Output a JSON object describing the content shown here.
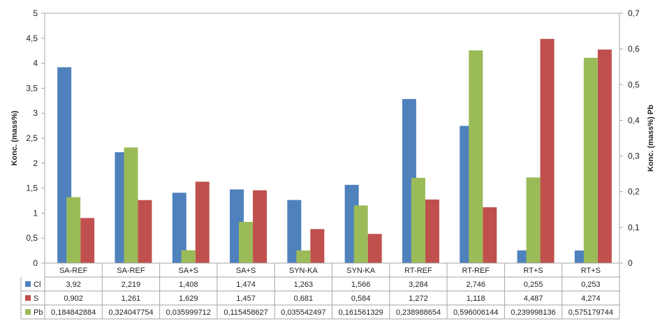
{
  "chart_data": {
    "type": "bar",
    "title": "",
    "categories": [
      "SA-REF",
      "SA-REF",
      "SA+S",
      "SA+S",
      "SYN-KA",
      "SYN-KA",
      "RT-REF",
      "RT-REF",
      "RT+S",
      "RT+S"
    ],
    "series": [
      {
        "name": "Cl",
        "axis": "left",
        "color": "#4f81bd",
        "values": [
          3.92,
          2.219,
          1.408,
          1.474,
          1.263,
          1.566,
          3.284,
          2.746,
          0.255,
          0.253
        ],
        "labels": [
          "3,92",
          "2,219",
          "1,408",
          "1,474",
          "1,263",
          "1,566",
          "3,284",
          "2,746",
          "0,255",
          "0,253"
        ]
      },
      {
        "name": "S",
        "axis": "left",
        "color": "#c0504d",
        "values": [
          0.902,
          1.261,
          1.629,
          1.457,
          0.681,
          0.584,
          1.272,
          1.118,
          4.487,
          4.274
        ],
        "labels": [
          "0,902",
          "1,261",
          "1,629",
          "1,457",
          "0,681",
          "0,584",
          "1,272",
          "1,118",
          "4,487",
          "4,274"
        ]
      },
      {
        "name": "Pb",
        "axis": "right",
        "color": "#9bbb59",
        "values": [
          0.184842884,
          0.324047754,
          0.035999712,
          0.115458627,
          0.035542497,
          0.161561329,
          0.238988654,
          0.596006144,
          0.239998136,
          0.575179744
        ],
        "labels": [
          "0,184842884",
          "0,324047754",
          "0,035999712",
          "0,115458627",
          "0,035542497",
          "0,161561329",
          "0,238988654",
          "0,596006144",
          "0,239998136",
          "0,575179744"
        ]
      }
    ],
    "ylabel": "Konc. (mass%)",
    "ylim": [
      0,
      5
    ],
    "yticks": [
      "0",
      "0,5",
      "1",
      "1,5",
      "2",
      "2,5",
      "3",
      "3,5",
      "4",
      "4,5",
      "5"
    ],
    "y2label": "Konc. (mass%) Pb",
    "y2lim": [
      0,
      0.7
    ],
    "y2ticks": [
      "0",
      "0,1",
      "0,2",
      "0,3",
      "0,4",
      "0,5",
      "0,6",
      "0,7"
    ],
    "legend": "data-table",
    "grid": false
  }
}
